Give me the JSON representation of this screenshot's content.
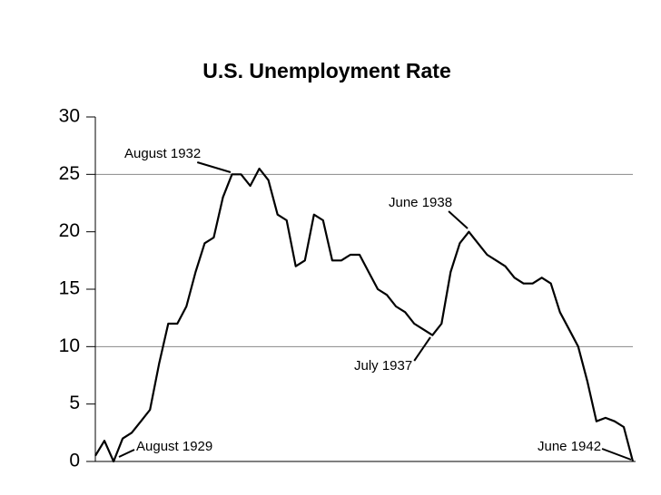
{
  "chart_data": {
    "type": "line",
    "title": "U.S. Unemployment Rate",
    "series": [
      {
        "color": "#000000",
        "values": [
          0.5,
          1.8,
          0,
          2.0,
          2.5,
          3.5,
          4.5,
          8.5,
          12,
          12,
          13.5,
          16.5,
          19,
          19.5,
          23,
          25,
          25,
          24,
          25.5,
          24.5,
          21.5,
          21,
          17,
          17.5,
          21.5,
          21,
          17.5,
          17.5,
          18,
          18,
          16.5,
          15,
          14.5,
          13.5,
          13,
          12,
          11.5,
          11,
          12,
          16.5,
          19,
          20,
          19,
          18,
          17.5,
          17,
          16,
          15.5,
          15.5,
          16,
          15.5,
          13,
          11.5,
          10,
          7,
          3.5,
          3.8,
          3.5,
          3,
          0
        ]
      }
    ],
    "ylim": [
      0,
      30
    ],
    "yticks": [
      0,
      5,
      10,
      15,
      20,
      25,
      30
    ],
    "grid_lines": [
      10,
      25
    ],
    "annotations": [
      "August 1929",
      "August 1932",
      "June 1938",
      "July 1937",
      "June 1942"
    ]
  }
}
